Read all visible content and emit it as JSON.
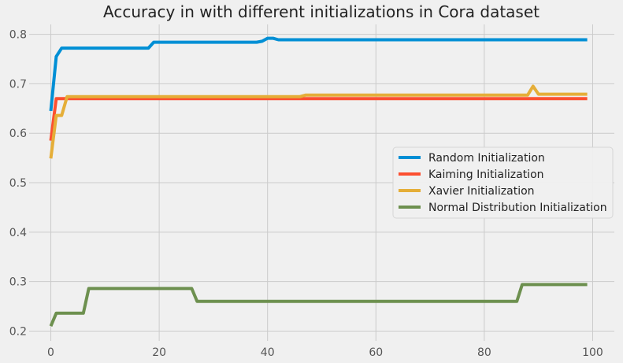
{
  "chart_data": {
    "type": "line",
    "title": "Accuracy in with different initializations in Cora dataset",
    "xlabel": "",
    "ylabel": "",
    "xlim": [
      -4,
      104
    ],
    "ylim": [
      0.18,
      0.82
    ],
    "xticks": [
      0,
      20,
      40,
      60,
      80,
      100
    ],
    "xtick_labels": [
      "0",
      "20",
      "40",
      "60",
      "80",
      "100"
    ],
    "yticks": [
      0.2,
      0.3,
      0.4,
      0.5,
      0.6,
      0.7,
      0.8
    ],
    "ytick_labels": [
      "0.2",
      "0.3",
      "0.4",
      "0.5",
      "0.6",
      "0.7",
      "0.8"
    ],
    "grid": true,
    "legend_position": "center-right",
    "series": [
      {
        "name": "Random Initialization",
        "color": "#008fd5",
        "points": [
          [
            0,
            0.645
          ],
          [
            1,
            0.755
          ],
          [
            2,
            0.772
          ],
          [
            18,
            0.772
          ],
          [
            19,
            0.784
          ],
          [
            38,
            0.784
          ],
          [
            39,
            0.786
          ],
          [
            40,
            0.792
          ],
          [
            41,
            0.792
          ],
          [
            42,
            0.789
          ],
          [
            99,
            0.789
          ]
        ]
      },
      {
        "name": "Kaiming Initialization",
        "color": "#fc4f30",
        "points": [
          [
            0,
            0.585
          ],
          [
            1,
            0.67
          ],
          [
            99,
            0.67
          ]
        ]
      },
      {
        "name": "Xavier Initialization",
        "color": "#e5ae38",
        "points": [
          [
            0,
            0.549
          ],
          [
            1,
            0.636
          ],
          [
            2,
            0.636
          ],
          [
            3,
            0.674
          ],
          [
            46,
            0.674
          ],
          [
            47,
            0.677
          ],
          [
            88,
            0.677
          ],
          [
            89,
            0.695
          ],
          [
            90,
            0.679
          ],
          [
            99,
            0.679
          ]
        ]
      },
      {
        "name": "Normal Distribution Initialization",
        "color": "#6d904f",
        "points": [
          [
            0,
            0.21
          ],
          [
            1,
            0.236
          ],
          [
            6,
            0.236
          ],
          [
            7,
            0.286
          ],
          [
            26,
            0.286
          ],
          [
            27,
            0.26
          ],
          [
            86,
            0.26
          ],
          [
            87,
            0.294
          ],
          [
            99,
            0.294
          ]
        ]
      }
    ]
  }
}
